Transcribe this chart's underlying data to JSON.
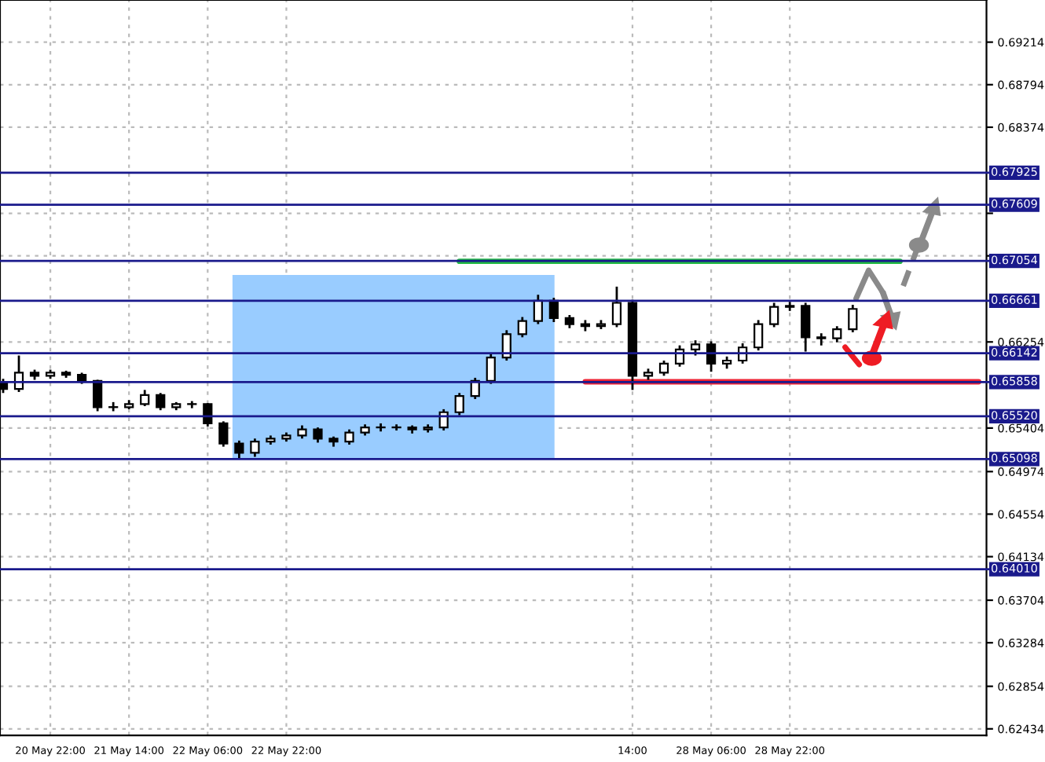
{
  "chart_data": {
    "type": "candlestick",
    "categories": [
      null,
      null,
      null,
      "20 May 22:00",
      null,
      null,
      null,
      null,
      "21 May 14:00",
      null,
      null,
      null,
      null,
      "22 May 06:00",
      null,
      null,
      null,
      null,
      "22 May 22:00",
      null,
      null,
      null,
      null,
      null,
      null,
      null,
      null,
      null,
      null,
      null,
      null,
      null,
      null,
      null,
      null,
      null,
      null,
      null,
      null,
      null,
      "14:00",
      null,
      null,
      null,
      null,
      "28 May 06:00",
      null,
      null,
      null,
      null,
      "28 May 22:00",
      null,
      null,
      null,
      null,
      null,
      null,
      null,
      null,
      null,
      null,
      null,
      null
    ],
    "ohlc": [
      [
        0.6585,
        0.6589,
        0.6575,
        0.6579
      ],
      [
        0.6579,
        0.6612,
        0.6576,
        0.6595
      ],
      [
        0.6595,
        0.6598,
        0.6588,
        0.6592
      ],
      [
        0.6592,
        0.6598,
        0.6589,
        0.6595
      ],
      [
        0.6595,
        0.6597,
        0.659,
        0.6593
      ],
      [
        0.6593,
        0.6595,
        0.6584,
        0.6587
      ],
      [
        0.6587,
        0.6588,
        0.6557,
        0.6561
      ],
      [
        0.6561,
        0.6566,
        0.6557,
        0.6561
      ],
      [
        0.6561,
        0.6568,
        0.6559,
        0.6564
      ],
      [
        0.6564,
        0.6578,
        0.6562,
        0.6573
      ],
      [
        0.6573,
        0.6575,
        0.6558,
        0.6561
      ],
      [
        0.6561,
        0.6566,
        0.6558,
        0.6564
      ],
      [
        0.6564,
        0.6567,
        0.656,
        0.6564
      ],
      [
        0.6564,
        0.6565,
        0.6542,
        0.6545
      ],
      [
        0.6545,
        0.6547,
        0.6522,
        0.6525
      ],
      [
        0.6525,
        0.6528,
        0.651,
        0.6516
      ],
      [
        0.6516,
        0.653,
        0.6512,
        0.6527
      ],
      [
        0.6527,
        0.6533,
        0.6524,
        0.653
      ],
      [
        0.653,
        0.6536,
        0.6527,
        0.6533
      ],
      [
        0.6533,
        0.6543,
        0.653,
        0.6539
      ],
      [
        0.6539,
        0.6541,
        0.6526,
        0.653
      ],
      [
        0.653,
        0.6532,
        0.6522,
        0.6527
      ],
      [
        0.6527,
        0.6539,
        0.6524,
        0.6536
      ],
      [
        0.6536,
        0.6544,
        0.6533,
        0.6541
      ],
      [
        0.6541,
        0.6545,
        0.6537,
        0.6541
      ],
      [
        0.6541,
        0.6544,
        0.6538,
        0.6541
      ],
      [
        0.6541,
        0.6543,
        0.6535,
        0.6539
      ],
      [
        0.6539,
        0.6544,
        0.6536,
        0.6541
      ],
      [
        0.6541,
        0.6559,
        0.6538,
        0.6556
      ],
      [
        0.6556,
        0.6575,
        0.6553,
        0.6572
      ],
      [
        0.6572,
        0.659,
        0.6569,
        0.6587
      ],
      [
        0.6587,
        0.6614,
        0.6584,
        0.661
      ],
      [
        0.661,
        0.6637,
        0.6607,
        0.6633
      ],
      [
        0.6633,
        0.665,
        0.663,
        0.6646
      ],
      [
        0.6646,
        0.6672,
        0.6643,
        0.6666
      ],
      [
        0.6666,
        0.6669,
        0.6645,
        0.6649
      ],
      [
        0.6649,
        0.6652,
        0.6639,
        0.6643
      ],
      [
        0.6643,
        0.6647,
        0.6636,
        0.6641
      ],
      [
        0.6641,
        0.6647,
        0.6638,
        0.6643
      ],
      [
        0.6643,
        0.668,
        0.664,
        0.6664
      ],
      [
        0.6664,
        0.6667,
        0.6578,
        0.6592
      ],
      [
        0.6592,
        0.6599,
        0.6588,
        0.6595
      ],
      [
        0.6595,
        0.6607,
        0.6592,
        0.6604
      ],
      [
        0.6604,
        0.6622,
        0.6601,
        0.6618
      ],
      [
        0.6618,
        0.6627,
        0.6612,
        0.6623
      ],
      [
        0.6623,
        0.6626,
        0.6596,
        0.6604
      ],
      [
        0.6604,
        0.6611,
        0.6599,
        0.6607
      ],
      [
        0.6607,
        0.6624,
        0.6604,
        0.662
      ],
      [
        0.662,
        0.6647,
        0.6617,
        0.6643
      ],
      [
        0.6643,
        0.6664,
        0.664,
        0.666
      ],
      [
        0.666,
        0.6665,
        0.6656,
        0.6661
      ],
      [
        0.6661,
        0.6664,
        0.6616,
        0.663
      ],
      [
        0.663,
        0.6634,
        0.6622,
        0.6629
      ],
      [
        0.6629,
        0.6641,
        0.6625,
        0.6638
      ],
      [
        0.6638,
        0.6662,
        0.6635,
        0.6658
      ],
      null,
      null,
      null,
      null,
      null,
      null,
      null,
      null
    ],
    "color": "#000000",
    "series": [
      {
        "type": "line",
        "color": "#22bb44",
        "values": [
          null,
          null,
          null,
          null,
          null,
          null,
          null,
          null,
          null,
          null,
          null,
          null,
          null,
          null,
          null,
          null,
          null,
          null,
          null,
          null,
          null,
          null,
          null,
          null,
          null,
          null,
          null,
          null,
          null,
          0.6705,
          0.6705,
          0.6705,
          0.6705,
          0.6705,
          0.6705,
          0.6705,
          0.6705,
          0.6705,
          0.6705,
          0.6705,
          0.6705,
          0.6705,
          0.6705,
          0.6705,
          0.6705,
          0.6705,
          0.6705,
          0.6705,
          0.6705,
          0.6705,
          0.6705,
          0.6705,
          0.6705,
          0.6705,
          0.6705,
          0.6705,
          0.6705,
          0.6705,
          null,
          null,
          null,
          null,
          null
        ]
      },
      {
        "type": "line",
        "color": "#ee2233",
        "values": [
          null,
          null,
          null,
          null,
          null,
          null,
          null,
          null,
          null,
          null,
          null,
          null,
          null,
          null,
          null,
          null,
          null,
          null,
          null,
          null,
          null,
          null,
          null,
          null,
          null,
          null,
          null,
          null,
          null,
          null,
          null,
          null,
          null,
          null,
          null,
          null,
          null,
          0.6586,
          0.6586,
          0.6586,
          0.6586,
          0.6586,
          0.6586,
          0.6586,
          0.6586,
          0.6586,
          0.6586,
          0.6586,
          0.6586,
          0.6586,
          0.6586,
          0.6586,
          0.6586,
          0.6586,
          0.6586,
          0.6586,
          0.6586,
          0.6586,
          0.6586,
          0.6586,
          0.6586,
          0.6586,
          0.6586
        ]
      }
    ],
    "ref_lines": [
      {
        "axis": "y",
        "value": 0.67925,
        "label": "0.67925",
        "color": "#1a1a8c"
      },
      {
        "axis": "y",
        "value": 0.67609,
        "label": "0.67609",
        "color": "#1a1a8c"
      },
      {
        "axis": "y",
        "value": 0.67054,
        "label": "0.67054",
        "color": "#1a1a8c"
      },
      {
        "axis": "y",
        "value": 0.66661,
        "label": "0.66661",
        "color": "#1a1a8c"
      },
      {
        "axis": "y",
        "value": 0.66142,
        "label": "0.66142",
        "color": "#1a1a8c"
      },
      {
        "axis": "y",
        "value": 0.65858,
        "label": "0.65858",
        "color": "#1a1a8c"
      },
      {
        "axis": "y",
        "value": 0.6552,
        "label": "0.65520",
        "color": "#1a1a8c"
      },
      {
        "axis": "y",
        "value": 0.65098,
        "label": "0.65098",
        "color": "#1a1a8c"
      },
      {
        "axis": "y",
        "value": 0.6401,
        "label": "0.64010",
        "color": "#1a1a8c"
      }
    ],
    "ylim": [
      0.6237,
      0.6963
    ],
    "yticks": [
      {
        "value": 0.69214,
        "label": "0.69214"
      },
      {
        "value": 0.68794,
        "label": "0.68794"
      },
      {
        "value": 0.68374,
        "label": "0.68374"
      },
      {
        "value": 0.67524,
        "label": null
      },
      {
        "value": 0.67104,
        "label": null
      },
      {
        "value": 0.66254,
        "label": "0.66254"
      },
      {
        "value": 0.65404,
        "label": "0.65404"
      },
      {
        "value": 0.64974,
        "label": "0.64974"
      },
      {
        "value": 0.64554,
        "label": "0.64554"
      },
      {
        "value": 0.64134,
        "label": "0.64134"
      },
      {
        "value": 0.63704,
        "label": "0.63704"
      },
      {
        "value": 0.63284,
        "label": "0.63284"
      },
      {
        "value": 0.62854,
        "label": "0.62854"
      },
      {
        "value": 0.62434,
        "label": "0.62434"
      }
    ],
    "grid": true,
    "legend": false
  }
}
